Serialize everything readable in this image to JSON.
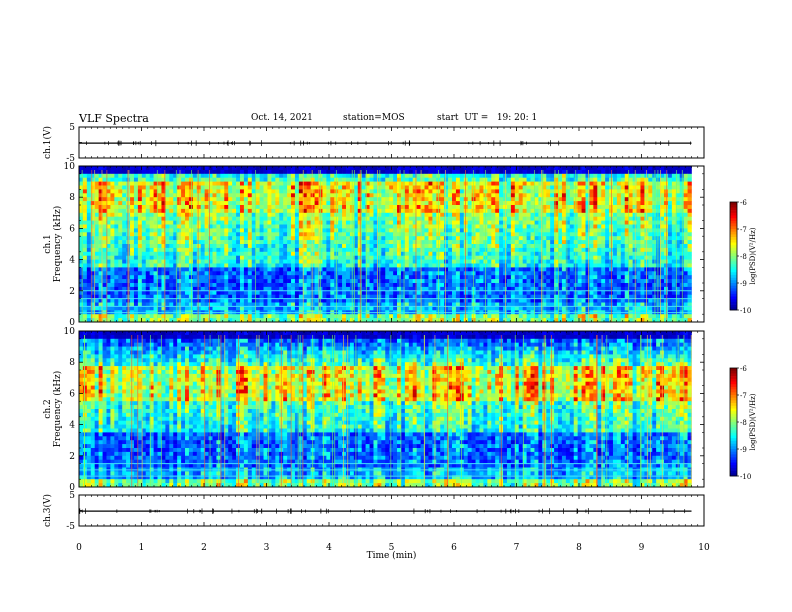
{
  "header": {
    "title": "VLF Spectra",
    "date": "Oct. 14, 2021",
    "station": "station=MOS",
    "start": "start  UT =   19: 20: 1"
  },
  "chart_data": [
    {
      "type": "line",
      "panel": "ch1-waveform",
      "ylabel": "ch.1(V)",
      "ylim": [
        -5,
        5
      ],
      "yticks": [
        "5",
        "-5"
      ],
      "xlim": [
        0,
        10
      ],
      "series": [
        {
          "values": [
            -0.2,
            -0.2
          ]
        }
      ]
    },
    {
      "type": "heatmap",
      "panel": "ch1-spectrogram",
      "ylabel": "ch.1 Frequency (kHz)",
      "ylabel_line1": "ch.1",
      "ylabel_line2": "Frequency (kHz)",
      "ylim": [
        0,
        10
      ],
      "yticks": [
        "0",
        "2",
        "4",
        "6",
        "8",
        "10"
      ],
      "xlim": [
        0,
        9.8
      ],
      "peak_band_khz": [
        7.0,
        9.0
      ],
      "colorbar": {
        "label": "log(PSD)(V²/Hz)",
        "range": [
          -10,
          -6
        ],
        "ticks": [
          "-6",
          "-7",
          "-8",
          "-9",
          "-10"
        ]
      }
    },
    {
      "type": "heatmap",
      "panel": "ch2-spectrogram",
      "ylabel": "ch.2 Frequency (kHz)",
      "ylabel_line1": "ch.2",
      "ylabel_line2": "Frequency (kHz)",
      "ylim": [
        0,
        10
      ],
      "yticks": [
        "0",
        "2",
        "4",
        "6",
        "8",
        "10"
      ],
      "xlim": [
        0,
        9.8
      ],
      "peak_band_khz": [
        5.5,
        7.8
      ],
      "colorbar": {
        "label": "log(PSD)(V²/Hz)",
        "range": [
          -10,
          -6
        ],
        "ticks": [
          "-6",
          "-7",
          "-8",
          "-9",
          "-10"
        ]
      }
    },
    {
      "type": "line",
      "panel": "ch3-waveform",
      "ylabel": "ch.3(V)",
      "ylim": [
        -5,
        5
      ],
      "yticks": [
        "5",
        "-5"
      ],
      "xlim": [
        0,
        10
      ],
      "xlabel": "Time  (min)",
      "xticks": [
        "0",
        "1",
        "2",
        "3",
        "4",
        "5",
        "6",
        "7",
        "8",
        "9",
        "10"
      ],
      "series": [
        {
          "values": [
            -0.2,
            -0.2
          ]
        }
      ]
    }
  ]
}
